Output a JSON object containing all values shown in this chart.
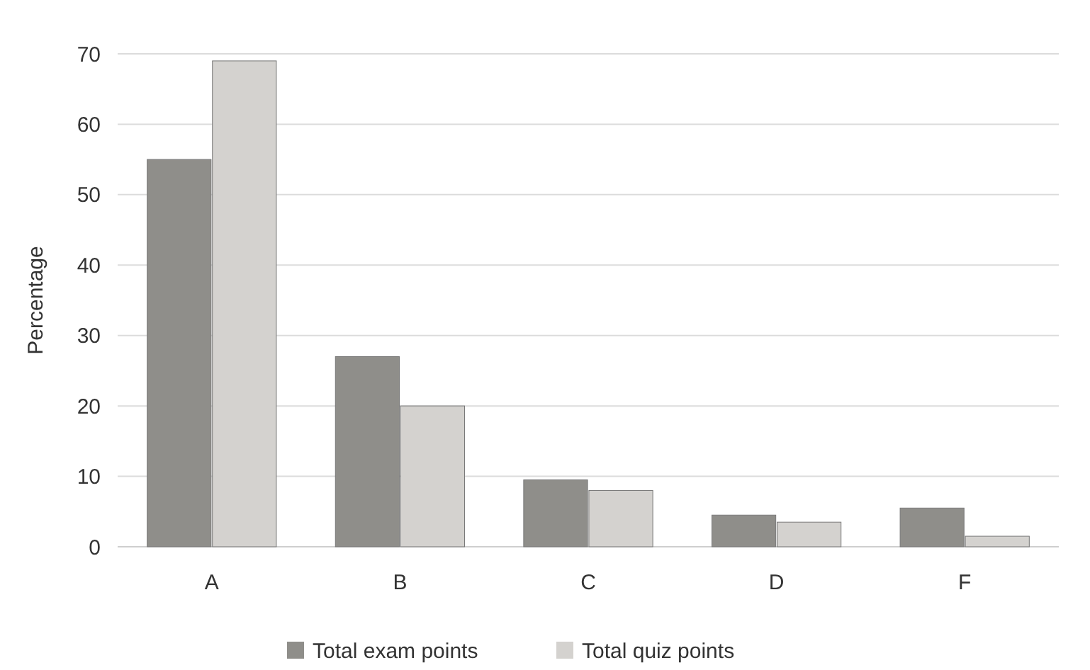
{
  "chart_data": {
    "type": "bar",
    "ylabel": "Percentage",
    "categories": [
      "A",
      "B",
      "C",
      "D",
      "F"
    ],
    "series": [
      {
        "name": "Total exam points",
        "color": "#8f8e8a",
        "values": [
          55,
          27,
          9.5,
          4.5,
          5.5
        ]
      },
      {
        "name": "Total quiz points",
        "color": "#d4d2cf",
        "values": [
          69,
          20,
          8,
          3.5,
          1.5
        ]
      }
    ],
    "ylim": [
      0,
      70
    ],
    "yticks": [
      0,
      10,
      20,
      30,
      40,
      50,
      60,
      70
    ],
    "grid": "y",
    "legend": "bottom"
  }
}
